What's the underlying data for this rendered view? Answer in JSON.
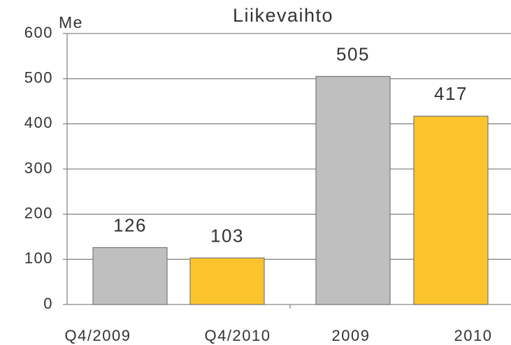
{
  "chart_data": {
    "type": "bar",
    "title": "Liikevaihto",
    "y_label": "Me",
    "categories": [
      "Q4/2009",
      "Q4/2010",
      "2009",
      "2010"
    ],
    "values": [
      126,
      103,
      505,
      417
    ],
    "colors": [
      "#bfbfbf",
      "#fcc42c",
      "#bfbfbf",
      "#fcc42c"
    ],
    "ylim": [
      0,
      600
    ],
    "yticks": [
      0,
      100,
      200,
      300,
      400,
      500,
      600
    ],
    "grid": true
  }
}
